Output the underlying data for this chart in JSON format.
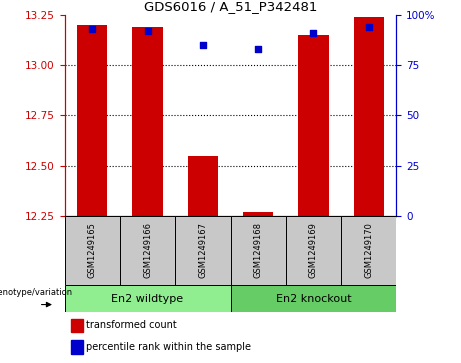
{
  "title": "GDS6016 / A_51_P342481",
  "samples": [
    "GSM1249165",
    "GSM1249166",
    "GSM1249167",
    "GSM1249168",
    "GSM1249169",
    "GSM1249170"
  ],
  "red_values": [
    13.2,
    13.19,
    12.55,
    12.27,
    13.15,
    13.24
  ],
  "blue_values": [
    93,
    92,
    85,
    83,
    91,
    94
  ],
  "ylim_left": [
    12.25,
    13.25
  ],
  "ylim_right": [
    0,
    100
  ],
  "yticks_left": [
    12.25,
    12.5,
    12.75,
    13.0,
    13.25
  ],
  "yticks_right": [
    0,
    25,
    50,
    75,
    100
  ],
  "ytick_labels_right": [
    "0",
    "25",
    "50",
    "75",
    "100%"
  ],
  "hlines": [
    12.5,
    12.75,
    13.0
  ],
  "bar_color": "#cc0000",
  "dot_color": "#0000cc",
  "bar_width": 0.55,
  "group1_label": "En2 wildtype",
  "group2_label": "En2 knockout",
  "group1_indices": [
    0,
    1,
    2
  ],
  "group2_indices": [
    3,
    4,
    5
  ],
  "group1_color": "#90ee90",
  "group2_color": "#66cc66",
  "genotype_label": "genotype/variation",
  "legend1": "transformed count",
  "legend2": "percentile rank within the sample",
  "tick_color_left": "#cc0000",
  "tick_color_right": "#0000cc",
  "background_color": "#ffffff",
  "plot_bg": "#ffffff",
  "sample_box_color": "#c8c8c8"
}
